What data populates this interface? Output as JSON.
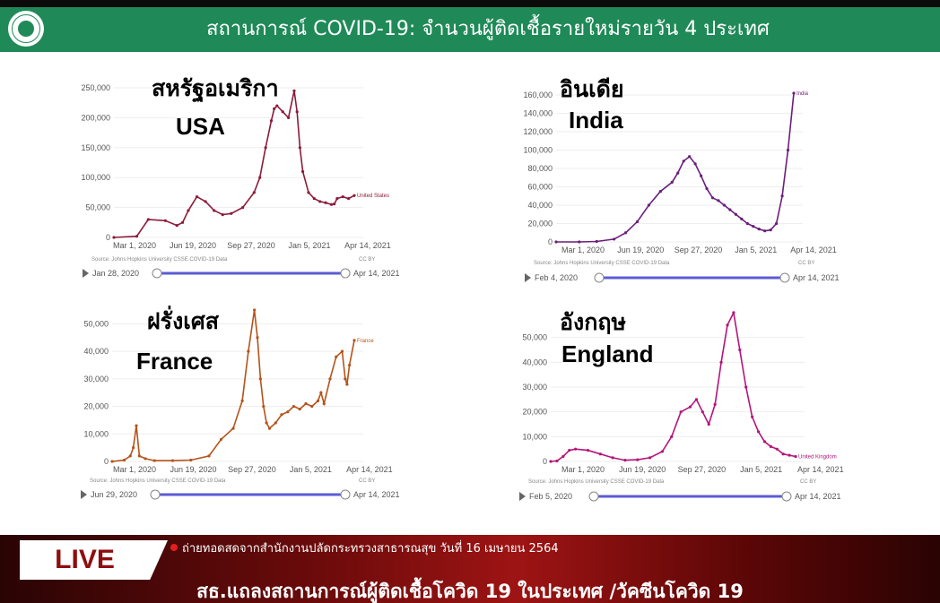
{
  "header": {
    "title": "สถานการณ์ COVID-19: จำนวนผู้ติดเชื้อรายใหม่รายวัน 4 ประเทศ"
  },
  "bottom": {
    "live": "LIVE",
    "subline": "ถ่ายทอดสดจากสำนักงานปลัดกระทรวงสาธารณสุข วันที่ 16 เมษายน 2564",
    "ticker": "สธ.แถลงสถานการณ์ผู้ติดเชื้อโควิด 19 ในประเทศ /วัคซีนโควิด 19"
  },
  "chart_data": [
    {
      "type": "line",
      "title_th": "สหรัฐอเมริกา",
      "title_en": "USA",
      "series": [
        {
          "name": "United States",
          "x": [
            0,
            40,
            60,
            90,
            110,
            120,
            130,
            145,
            160,
            175,
            190,
            205,
            225,
            245,
            255,
            265,
            275,
            280,
            285,
            295,
            305,
            315,
            320,
            325,
            330,
            340,
            350,
            360,
            370,
            380,
            385,
            390,
            400,
            410,
            420
          ],
          "values": [
            0,
            2000,
            30000,
            28000,
            20000,
            25000,
            45000,
            68000,
            60000,
            45000,
            38000,
            40000,
            50000,
            75000,
            100000,
            150000,
            195000,
            215000,
            220000,
            210000,
            200000,
            245000,
            210000,
            150000,
            110000,
            75000,
            65000,
            60000,
            58000,
            55000,
            56000,
            65000,
            68000,
            65000,
            70000
          ]
        }
      ],
      "x_ticks": [
        "Mar 1, 2020",
        "Jun 19, 2020",
        "Sep 27, 2020",
        "Jan 5, 2021",
        "Apr 14, 2021"
      ],
      "y_ticks": [
        "0",
        "50,000",
        "100,000",
        "150,000",
        "200,000",
        "250,000"
      ],
      "ylim": [
        0,
        250000
      ],
      "color": "#8b1c3a",
      "end_label": "United States",
      "source": "Source: Johns Hopkins University CSSE COVID-19 Data",
      "license": "CC BY",
      "slider_start": "Jan 28, 2020",
      "slider_end": "Apr 14, 2021"
    },
    {
      "type": "line",
      "title_th": "อินเดีย",
      "title_en": "India",
      "series": [
        {
          "name": "India",
          "x": [
            0,
            40,
            70,
            100,
            120,
            140,
            160,
            180,
            200,
            210,
            220,
            230,
            240,
            250,
            260,
            270,
            280,
            290,
            300,
            310,
            320,
            330,
            340,
            350,
            360,
            370,
            380,
            390,
            400,
            410
          ],
          "values": [
            0,
            0,
            500,
            3000,
            10000,
            22000,
            40000,
            55000,
            65000,
            75000,
            88000,
            93000,
            85000,
            72000,
            58000,
            48000,
            45000,
            40000,
            35000,
            30000,
            25000,
            20000,
            17000,
            14000,
            12000,
            13000,
            20000,
            50000,
            100000,
            162000
          ]
        }
      ],
      "x_ticks": [
        "Mar 1, 2020",
        "Jun 19, 2020",
        "Sep 27, 2020",
        "Jan 5, 2021",
        "Apr 14, 2021"
      ],
      "y_ticks": [
        "0",
        "20,000",
        "40,000",
        "60,000",
        "80,000",
        "100,000",
        "120,000",
        "140,000",
        "160,000"
      ],
      "ylim": [
        0,
        160000
      ],
      "color": "#6a1f7a",
      "end_label": "India",
      "source": "Source: Johns Hopkins University CSSE COVID-19 Data",
      "license": "CC BY",
      "slider_start": "Feb 4, 2020",
      "slider_end": "Apr 14, 2021"
    },
    {
      "type": "line",
      "title_th": "ฝรั่งเศส",
      "title_en": "France",
      "series": [
        {
          "name": "France",
          "x": [
            0,
            20,
            30,
            35,
            40,
            45,
            55,
            70,
            100,
            130,
            160,
            180,
            200,
            215,
            225,
            235,
            240,
            245,
            250,
            255,
            260,
            270,
            280,
            290,
            300,
            310,
            320,
            330,
            340,
            345,
            350,
            360,
            370,
            380,
            385,
            388,
            392,
            400
          ],
          "values": [
            0,
            500,
            2000,
            5000,
            13000,
            2000,
            1000,
            300,
            300,
            500,
            2000,
            8000,
            12000,
            22000,
            40000,
            55000,
            45000,
            30000,
            20000,
            14000,
            12000,
            14000,
            17000,
            18000,
            20000,
            19000,
            21000,
            20000,
            22000,
            25000,
            21000,
            30000,
            38000,
            40000,
            30000,
            28000,
            35000,
            44000
          ]
        }
      ],
      "x_ticks": [
        "Mar 1, 2020",
        "Jun 19, 2020",
        "Sep 27, 2020",
        "Jan 5, 2021",
        "Apr 14, 2021"
      ],
      "y_ticks": [
        "0",
        "10,000",
        "20,000",
        "30,000",
        "40,000",
        "50,000"
      ],
      "ylim": [
        0,
        55000
      ],
      "color": "#b5531a",
      "end_label": "France",
      "source": "Source: Johns Hopkins University CSSE COVID-19 Data",
      "license": "CC BY",
      "slider_start": "Jun 29, 2020",
      "slider_end": "Apr 14, 2021"
    },
    {
      "type": "line",
      "title_th": "อังกฤษ",
      "title_en": "England",
      "series": [
        {
          "name": "United Kingdom",
          "x": [
            0,
            10,
            20,
            30,
            40,
            60,
            80,
            100,
            120,
            140,
            160,
            180,
            195,
            210,
            225,
            235,
            245,
            255,
            265,
            275,
            285,
            295,
            305,
            315,
            325,
            335,
            345,
            355,
            365,
            375,
            385,
            395
          ],
          "values": [
            0,
            200,
            2000,
            4500,
            5000,
            4500,
            3000,
            1500,
            500,
            700,
            1500,
            4000,
            10000,
            20000,
            22000,
            25000,
            20000,
            15000,
            23000,
            40000,
            55000,
            60000,
            45000,
            30000,
            18000,
            12000,
            8000,
            6000,
            5000,
            3000,
            2500,
            2000
          ]
        }
      ],
      "x_ticks": [
        "Mar 1, 2020",
        "Jun 19, 2020",
        "Sep 27, 2020",
        "Jan 5, 2021",
        "Apr 14, 2021"
      ],
      "y_ticks": [
        "0",
        "10,000",
        "20,000",
        "30,000",
        "40,000",
        "50,000"
      ],
      "ylim": [
        0,
        60000
      ],
      "color": "#b3157a",
      "end_label": "United Kingdom",
      "source": "Source: Johns Hopkins University CSSE COVID-19 Data",
      "license": "CC BY",
      "slider_start": "Feb 5, 2020",
      "slider_end": "Apr 14, 2021"
    }
  ]
}
